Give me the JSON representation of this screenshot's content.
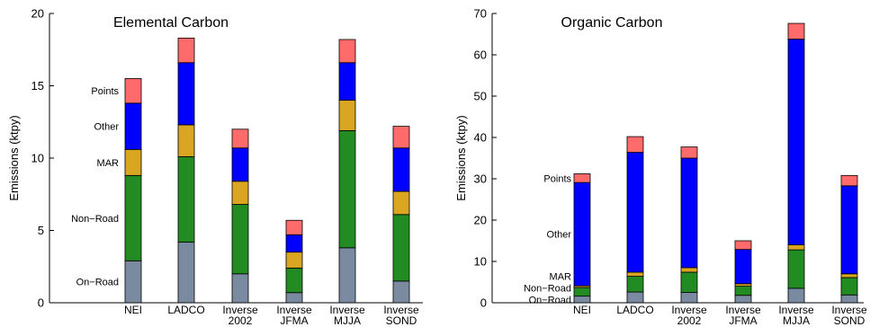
{
  "chart_data": [
    {
      "type": "bar",
      "stacked": true,
      "title": "Elemental Carbon",
      "xlabel": "",
      "ylabel": "Emissions (ktpy)",
      "ylim": [
        0,
        20
      ],
      "yticks": [
        0,
        5,
        10,
        15,
        20
      ],
      "categories": [
        "NEI",
        "LADCO",
        "Inverse\n2002",
        "Inverse\nJFMA",
        "Inverse\nMJJA",
        "Inverse\nSOND"
      ],
      "series": [
        {
          "name": "On−Road",
          "color": "#7a8aa0",
          "values": [
            2.9,
            4.2,
            2.0,
            0.7,
            3.8,
            1.5
          ]
        },
        {
          "name": "Non−Road",
          "color": "#228b22",
          "values": [
            5.9,
            5.9,
            4.8,
            1.7,
            8.1,
            4.6
          ]
        },
        {
          "name": "MAR",
          "color": "#daa520",
          "values": [
            1.8,
            2.2,
            1.6,
            1.1,
            2.1,
            1.6
          ]
        },
        {
          "name": "Other",
          "color": "#0000ff",
          "values": [
            3.2,
            4.3,
            2.3,
            1.2,
            2.6,
            3.0
          ]
        },
        {
          "name": "Points",
          "color": "#ff6a6a",
          "values": [
            1.7,
            1.7,
            1.3,
            1.0,
            1.6,
            1.5
          ]
        }
      ],
      "grid": false,
      "legend": "labels beside first bar"
    },
    {
      "type": "bar",
      "stacked": true,
      "title": "Organic Carbon",
      "xlabel": "",
      "ylabel": "Emissions (ktpy)",
      "ylim": [
        0,
        70
      ],
      "yticks": [
        0,
        10,
        20,
        30,
        40,
        50,
        60,
        70
      ],
      "categories": [
        "NEI",
        "LADCO",
        "Inverse\n2002",
        "Inverse\nJFMA",
        "Inverse\nMJJA",
        "Inverse\nSOND"
      ],
      "series": [
        {
          "name": "On−Road",
          "color": "#7a8aa0",
          "values": [
            1.6,
            2.6,
            2.5,
            1.8,
            3.5,
            1.9
          ]
        },
        {
          "name": "Non−Road",
          "color": "#228b22",
          "values": [
            2.1,
            3.8,
            4.9,
            2.2,
            9.3,
            4.2
          ]
        },
        {
          "name": "MAR",
          "color": "#daa520",
          "values": [
            0.4,
            1.0,
            1.1,
            0.6,
            1.2,
            0.9
          ]
        },
        {
          "name": "Other",
          "color": "#0000ff",
          "values": [
            25.0,
            29.0,
            26.5,
            8.3,
            49.8,
            21.3
          ]
        },
        {
          "name": "Points",
          "color": "#ff6a6a",
          "values": [
            2.1,
            3.8,
            2.7,
            2.1,
            3.8,
            2.5
          ]
        }
      ],
      "grid": false,
      "legend": "labels beside first bar"
    }
  ]
}
